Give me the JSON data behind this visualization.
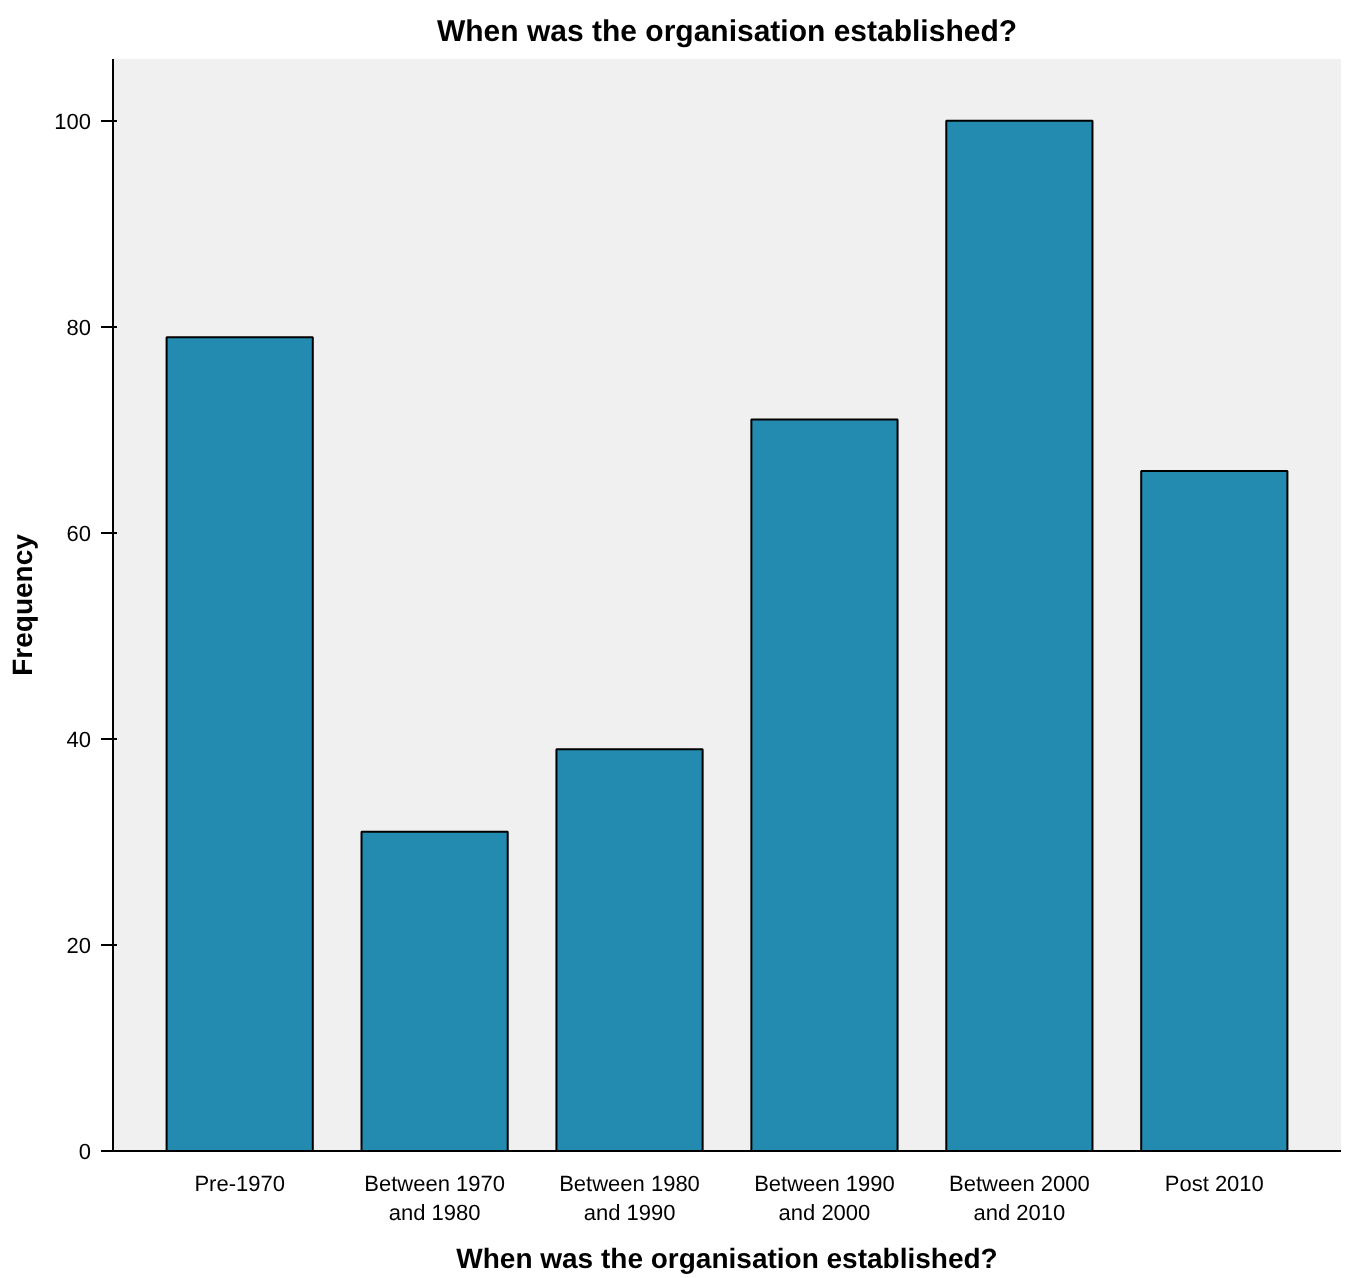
{
  "chart_data": {
    "type": "bar",
    "title": "When was the organisation established?",
    "xlabel": "When was the organisation established?",
    "ylabel": "Frequency",
    "categories": [
      "Pre-1970",
      "Between 1970\nand 1980",
      "Between 1980\nand 1990",
      "Between 1990\nand 2000",
      "Between 2000\nand 2010",
      "Post 2010"
    ],
    "values": [
      79,
      31,
      39,
      71,
      100,
      66
    ],
    "color": "#248bb0",
    "ylim": [
      0,
      106
    ],
    "yticks": [
      0,
      20,
      40,
      60,
      80,
      100
    ],
    "grid": false
  }
}
